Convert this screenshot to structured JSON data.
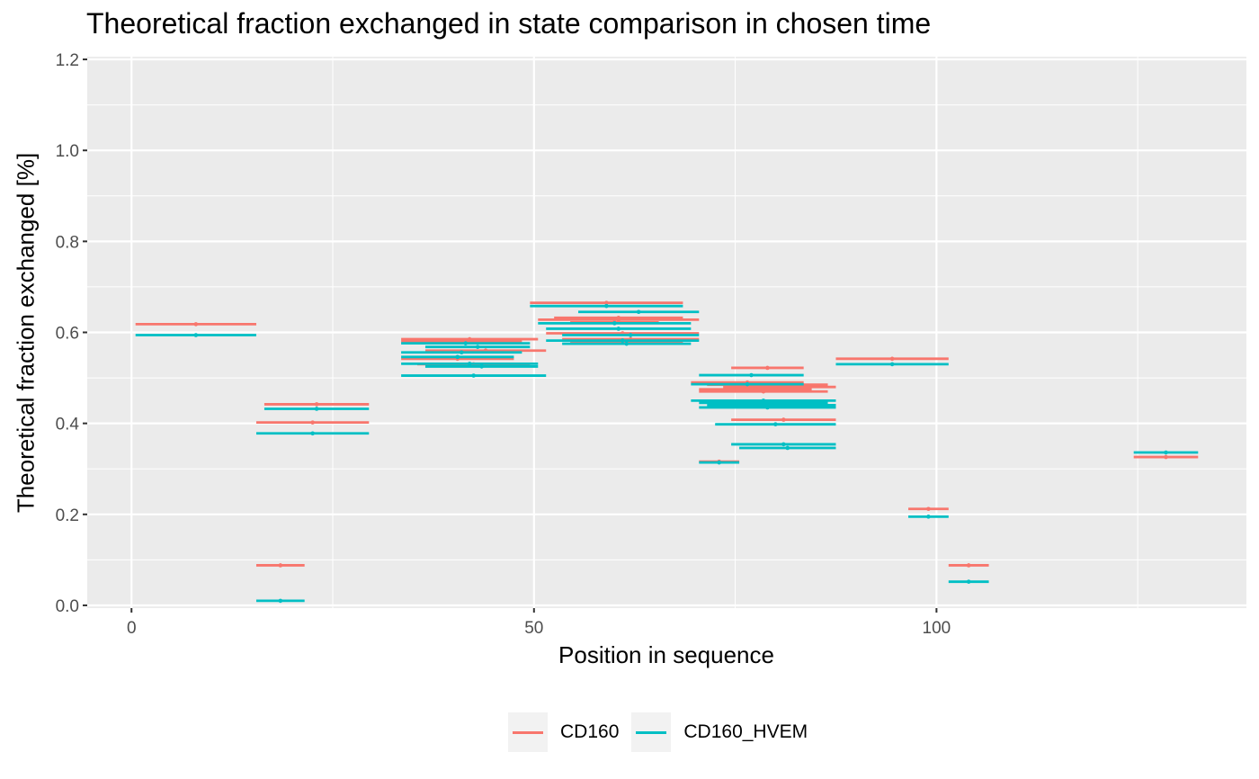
{
  "chart_data": {
    "type": "scatter",
    "title": "Theoretical fraction exchanged in state comparison in chosen time",
    "xlabel": "Position in sequence",
    "ylabel": "Theoretical fraction exchanged [%]",
    "xlim": [
      -5.5,
      138.5
    ],
    "ylim": [
      -0.006,
      1.206
    ],
    "x_ticks": [
      0,
      50,
      100
    ],
    "x_tick_labels": [
      "0",
      "50",
      "100"
    ],
    "y_ticks": [
      0.0,
      0.2,
      0.4,
      0.6,
      0.8,
      1.0,
      1.2
    ],
    "y_tick_labels": [
      "0.0",
      "0.2",
      "0.4",
      "0.6",
      "0.8",
      "1.0",
      "1.2"
    ],
    "grid": true,
    "legend_position": "bottom",
    "colors": {
      "CD160": "#F8766D",
      "CD160_HVEM": "#00BFC4"
    },
    "series": [
      {
        "name": "CD160",
        "peptides": [
          {
            "start": 1,
            "end": 15,
            "mid": 8,
            "value": 0.618
          },
          {
            "start": 17,
            "end": 29,
            "mid": 23,
            "value": 0.442
          },
          {
            "start": 16,
            "end": 29,
            "mid": 22.5,
            "value": 0.402
          },
          {
            "start": 16,
            "end": 21,
            "mid": 18.5,
            "value": 0.088
          },
          {
            "start": 34,
            "end": 50,
            "mid": 42,
            "value": 0.585
          },
          {
            "start": 34,
            "end": 48,
            "mid": 41,
            "value": 0.58
          },
          {
            "start": 37,
            "end": 51,
            "mid": 44,
            "value": 0.56
          },
          {
            "start": 34,
            "end": 47,
            "mid": 40.5,
            "value": 0.542
          },
          {
            "start": 36,
            "end": 49,
            "mid": 42.5,
            "value": 0.53
          },
          {
            "start": 50,
            "end": 68,
            "mid": 59,
            "value": 0.665
          },
          {
            "start": 51,
            "end": 70,
            "mid": 60.5,
            "value": 0.628
          },
          {
            "start": 53,
            "end": 68,
            "mid": 60.5,
            "value": 0.632
          },
          {
            "start": 55,
            "end": 65,
            "mid": 60,
            "value": 0.622
          },
          {
            "start": 52,
            "end": 70,
            "mid": 61,
            "value": 0.598
          },
          {
            "start": 54,
            "end": 70,
            "mid": 62,
            "value": 0.585
          },
          {
            "start": 55,
            "end": 68,
            "mid": 61.5,
            "value": 0.578
          },
          {
            "start": 70,
            "end": 83,
            "mid": 76.5,
            "value": 0.49
          },
          {
            "start": 72,
            "end": 86,
            "mid": 79,
            "value": 0.485
          },
          {
            "start": 74,
            "end": 87,
            "mid": 80.5,
            "value": 0.48
          },
          {
            "start": 71,
            "end": 84,
            "mid": 77.5,
            "value": 0.475
          },
          {
            "start": 71,
            "end": 86,
            "mid": 78.5,
            "value": 0.47
          },
          {
            "start": 75,
            "end": 83,
            "mid": 79,
            "value": 0.522
          },
          {
            "start": 73,
            "end": 86,
            "mid": 79.5,
            "value": 0.44
          },
          {
            "start": 75,
            "end": 87,
            "mid": 81,
            "value": 0.408
          },
          {
            "start": 71,
            "end": 75,
            "mid": 73,
            "value": 0.316
          },
          {
            "start": 88,
            "end": 101,
            "mid": 94.5,
            "value": 0.542
          },
          {
            "start": 97,
            "end": 101,
            "mid": 99,
            "value": 0.212
          },
          {
            "start": 102,
            "end": 106,
            "mid": 104,
            "value": 0.088
          },
          {
            "start": 125,
            "end": 132,
            "mid": 128.5,
            "value": 0.326
          }
        ]
      },
      {
        "name": "CD160_HVEM",
        "peptides": [
          {
            "start": 1,
            "end": 15,
            "mid": 8,
            "value": 0.594
          },
          {
            "start": 17,
            "end": 29,
            "mid": 23,
            "value": 0.432
          },
          {
            "start": 16,
            "end": 29,
            "mid": 22.5,
            "value": 0.378
          },
          {
            "start": 16,
            "end": 21,
            "mid": 18.5,
            "value": 0.01
          },
          {
            "start": 34,
            "end": 49,
            "mid": 41.5,
            "value": 0.576
          },
          {
            "start": 37,
            "end": 49,
            "mid": 43,
            "value": 0.568
          },
          {
            "start": 34,
            "end": 48,
            "mid": 41,
            "value": 0.556
          },
          {
            "start": 34,
            "end": 47,
            "mid": 40.5,
            "value": 0.546
          },
          {
            "start": 34,
            "end": 50,
            "mid": 42,
            "value": 0.531
          },
          {
            "start": 37,
            "end": 50,
            "mid": 43.5,
            "value": 0.525
          },
          {
            "start": 34,
            "end": 51,
            "mid": 42.5,
            "value": 0.505
          },
          {
            "start": 50,
            "end": 68,
            "mid": 59,
            "value": 0.658
          },
          {
            "start": 56,
            "end": 70,
            "mid": 63,
            "value": 0.645
          },
          {
            "start": 51,
            "end": 69,
            "mid": 60,
            "value": 0.62
          },
          {
            "start": 52,
            "end": 69,
            "mid": 60.5,
            "value": 0.608
          },
          {
            "start": 54,
            "end": 70,
            "mid": 62,
            "value": 0.594
          },
          {
            "start": 52,
            "end": 70,
            "mid": 61,
            "value": 0.582
          },
          {
            "start": 54,
            "end": 69,
            "mid": 61.5,
            "value": 0.575
          },
          {
            "start": 70,
            "end": 83,
            "mid": 76.5,
            "value": 0.486
          },
          {
            "start": 71,
            "end": 83,
            "mid": 77,
            "value": 0.506
          },
          {
            "start": 70,
            "end": 87,
            "mid": 78.5,
            "value": 0.45
          },
          {
            "start": 71,
            "end": 86,
            "mid": 78.5,
            "value": 0.445
          },
          {
            "start": 72,
            "end": 87,
            "mid": 79.5,
            "value": 0.44
          },
          {
            "start": 71,
            "end": 87,
            "mid": 79,
            "value": 0.435
          },
          {
            "start": 73,
            "end": 87,
            "mid": 80,
            "value": 0.398
          },
          {
            "start": 75,
            "end": 87,
            "mid": 81,
            "value": 0.354
          },
          {
            "start": 76,
            "end": 87,
            "mid": 81.5,
            "value": 0.346
          },
          {
            "start": 71,
            "end": 75,
            "mid": 73,
            "value": 0.314
          },
          {
            "start": 88,
            "end": 101,
            "mid": 94.5,
            "value": 0.53
          },
          {
            "start": 97,
            "end": 101,
            "mid": 99,
            "value": 0.195
          },
          {
            "start": 102,
            "end": 106,
            "mid": 104,
            "value": 0.052
          },
          {
            "start": 125,
            "end": 132,
            "mid": 128.5,
            "value": 0.336
          }
        ]
      }
    ]
  }
}
